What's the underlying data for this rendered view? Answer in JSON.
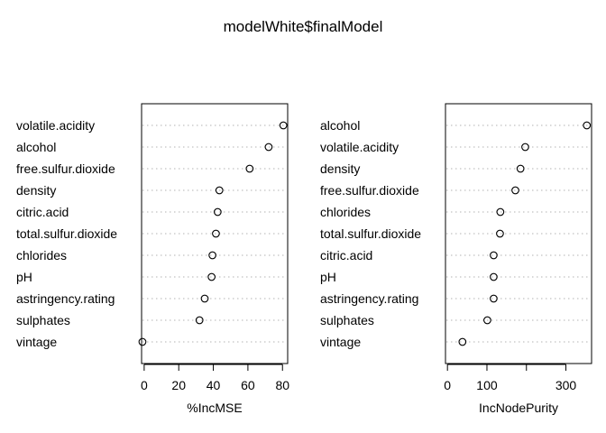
{
  "title": "modelWhite$finalModel",
  "chart_data": [
    {
      "type": "scatter",
      "xlabel": "%IncMSE",
      "xlim": [
        -1.5,
        83
      ],
      "xticks": [
        0,
        20,
        40,
        60,
        80
      ],
      "categories": [
        "volatile.acidity",
        "alcohol",
        "free.sulfur.dioxide",
        "density",
        "citric.acid",
        "total.sulfur.dioxide",
        "chlorides",
        "pH",
        "astringency.rating",
        "sulphates",
        "vintage"
      ],
      "values": [
        80.5,
        72,
        61,
        43.5,
        42.5,
        41.5,
        39.5,
        39,
        35,
        32,
        -1
      ]
    },
    {
      "type": "scatter",
      "xlabel": "IncNodePurity",
      "xlim": [
        -5,
        365
      ],
      "xticks": [
        0,
        100,
        200,
        300
      ],
      "ticklabels": [
        "0",
        "100",
        "",
        "300"
      ],
      "categories": [
        "alcohol",
        "volatile.acidity",
        "density",
        "free.sulfur.dioxide",
        "chlorides",
        "total.sulfur.dioxide",
        "citric.acid",
        "pH",
        "astringency.rating",
        "sulphates",
        "vintage"
      ],
      "values": [
        353,
        197,
        185,
        172,
        134,
        133,
        117,
        117,
        117,
        101,
        38
      ]
    }
  ]
}
